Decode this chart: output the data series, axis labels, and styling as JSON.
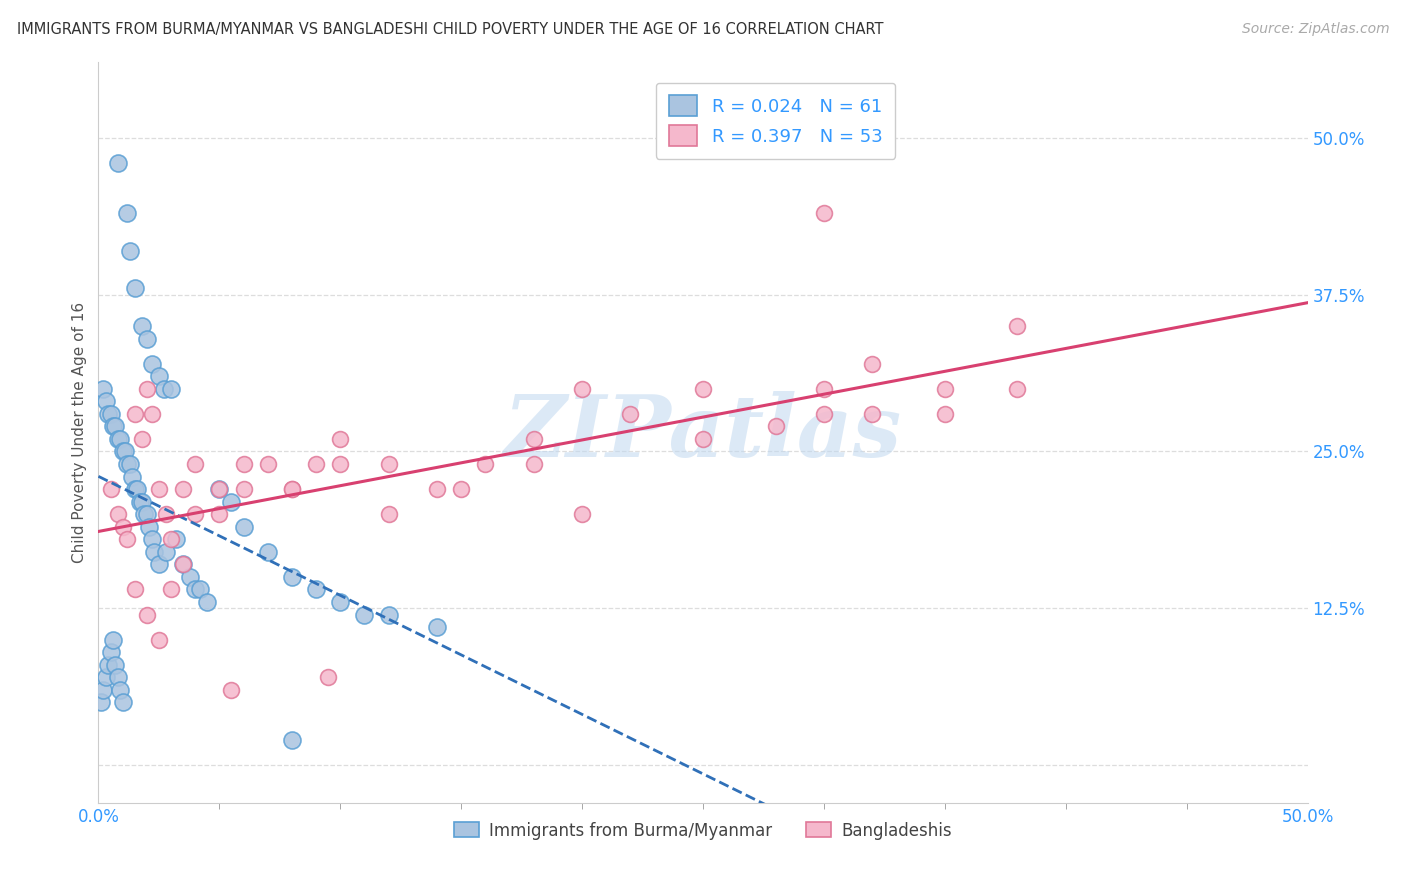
{
  "title": "IMMIGRANTS FROM BURMA/MYANMAR VS BANGLADESHI CHILD POVERTY UNDER THE AGE OF 16 CORRELATION CHART",
  "source": "Source: ZipAtlas.com",
  "ylabel": "Child Poverty Under the Age of 16",
  "xlim": [
    0.0,
    0.5
  ],
  "ylim": [
    -0.03,
    0.56
  ],
  "blue_face": "#aac4e0",
  "blue_edge": "#5a9fd4",
  "pink_face": "#f5b8cc",
  "pink_edge": "#e07898",
  "trend_blue_color": "#3070b8",
  "trend_pink_color": "#d84070",
  "watermark": "ZIPatlas",
  "watermark_color": "#c0d8f0",
  "legend_r1": "0.024",
  "legend_n1": "61",
  "legend_r2": "0.397",
  "legend_n2": "53",
  "legend_text_color": "#3399ff",
  "tick_color": "#3399ff",
  "title_color": "#333333",
  "source_color": "#aaaaaa",
  "ylabel_color": "#555555",
  "grid_color": "#dddddd",
  "bottom_label1": "Immigrants from Burma/Myanmar",
  "bottom_label2": "Bangladeshis",
  "blue_x": [
    0.008,
    0.012,
    0.013,
    0.015,
    0.018,
    0.02,
    0.022,
    0.025,
    0.027,
    0.03,
    0.002,
    0.003,
    0.004,
    0.005,
    0.006,
    0.007,
    0.008,
    0.009,
    0.01,
    0.011,
    0.012,
    0.013,
    0.014,
    0.015,
    0.016,
    0.017,
    0.018,
    0.019,
    0.02,
    0.021,
    0.022,
    0.023,
    0.025,
    0.028,
    0.032,
    0.035,
    0.038,
    0.04,
    0.042,
    0.045,
    0.05,
    0.055,
    0.06,
    0.07,
    0.08,
    0.09,
    0.1,
    0.11,
    0.12,
    0.14,
    0.001,
    0.002,
    0.003,
    0.004,
    0.005,
    0.006,
    0.007,
    0.008,
    0.009,
    0.01,
    0.08
  ],
  "blue_y": [
    0.48,
    0.44,
    0.41,
    0.38,
    0.35,
    0.34,
    0.32,
    0.31,
    0.3,
    0.3,
    0.3,
    0.29,
    0.28,
    0.28,
    0.27,
    0.27,
    0.26,
    0.26,
    0.25,
    0.25,
    0.24,
    0.24,
    0.23,
    0.22,
    0.22,
    0.21,
    0.21,
    0.2,
    0.2,
    0.19,
    0.18,
    0.17,
    0.16,
    0.17,
    0.18,
    0.16,
    0.15,
    0.14,
    0.14,
    0.13,
    0.22,
    0.21,
    0.19,
    0.17,
    0.15,
    0.14,
    0.13,
    0.12,
    0.12,
    0.11,
    0.05,
    0.06,
    0.07,
    0.08,
    0.09,
    0.1,
    0.08,
    0.07,
    0.06,
    0.05,
    0.02
  ],
  "pink_x": [
    0.005,
    0.008,
    0.01,
    0.012,
    0.015,
    0.018,
    0.02,
    0.022,
    0.025,
    0.028,
    0.03,
    0.035,
    0.04,
    0.05,
    0.06,
    0.07,
    0.08,
    0.09,
    0.1,
    0.12,
    0.14,
    0.16,
    0.18,
    0.2,
    0.22,
    0.25,
    0.28,
    0.3,
    0.32,
    0.35,
    0.38,
    0.015,
    0.02,
    0.025,
    0.03,
    0.035,
    0.04,
    0.05,
    0.06,
    0.08,
    0.1,
    0.12,
    0.15,
    0.18,
    0.2,
    0.25,
    0.3,
    0.35,
    0.32,
    0.38,
    0.3,
    0.055,
    0.095
  ],
  "pink_y": [
    0.22,
    0.2,
    0.19,
    0.18,
    0.28,
    0.26,
    0.3,
    0.28,
    0.22,
    0.2,
    0.18,
    0.22,
    0.24,
    0.2,
    0.22,
    0.24,
    0.22,
    0.24,
    0.26,
    0.24,
    0.22,
    0.24,
    0.26,
    0.3,
    0.28,
    0.3,
    0.27,
    0.3,
    0.32,
    0.28,
    0.3,
    0.14,
    0.12,
    0.1,
    0.14,
    0.16,
    0.2,
    0.22,
    0.24,
    0.22,
    0.24,
    0.2,
    0.22,
    0.24,
    0.2,
    0.26,
    0.28,
    0.3,
    0.28,
    0.35,
    0.44,
    0.06,
    0.07
  ]
}
